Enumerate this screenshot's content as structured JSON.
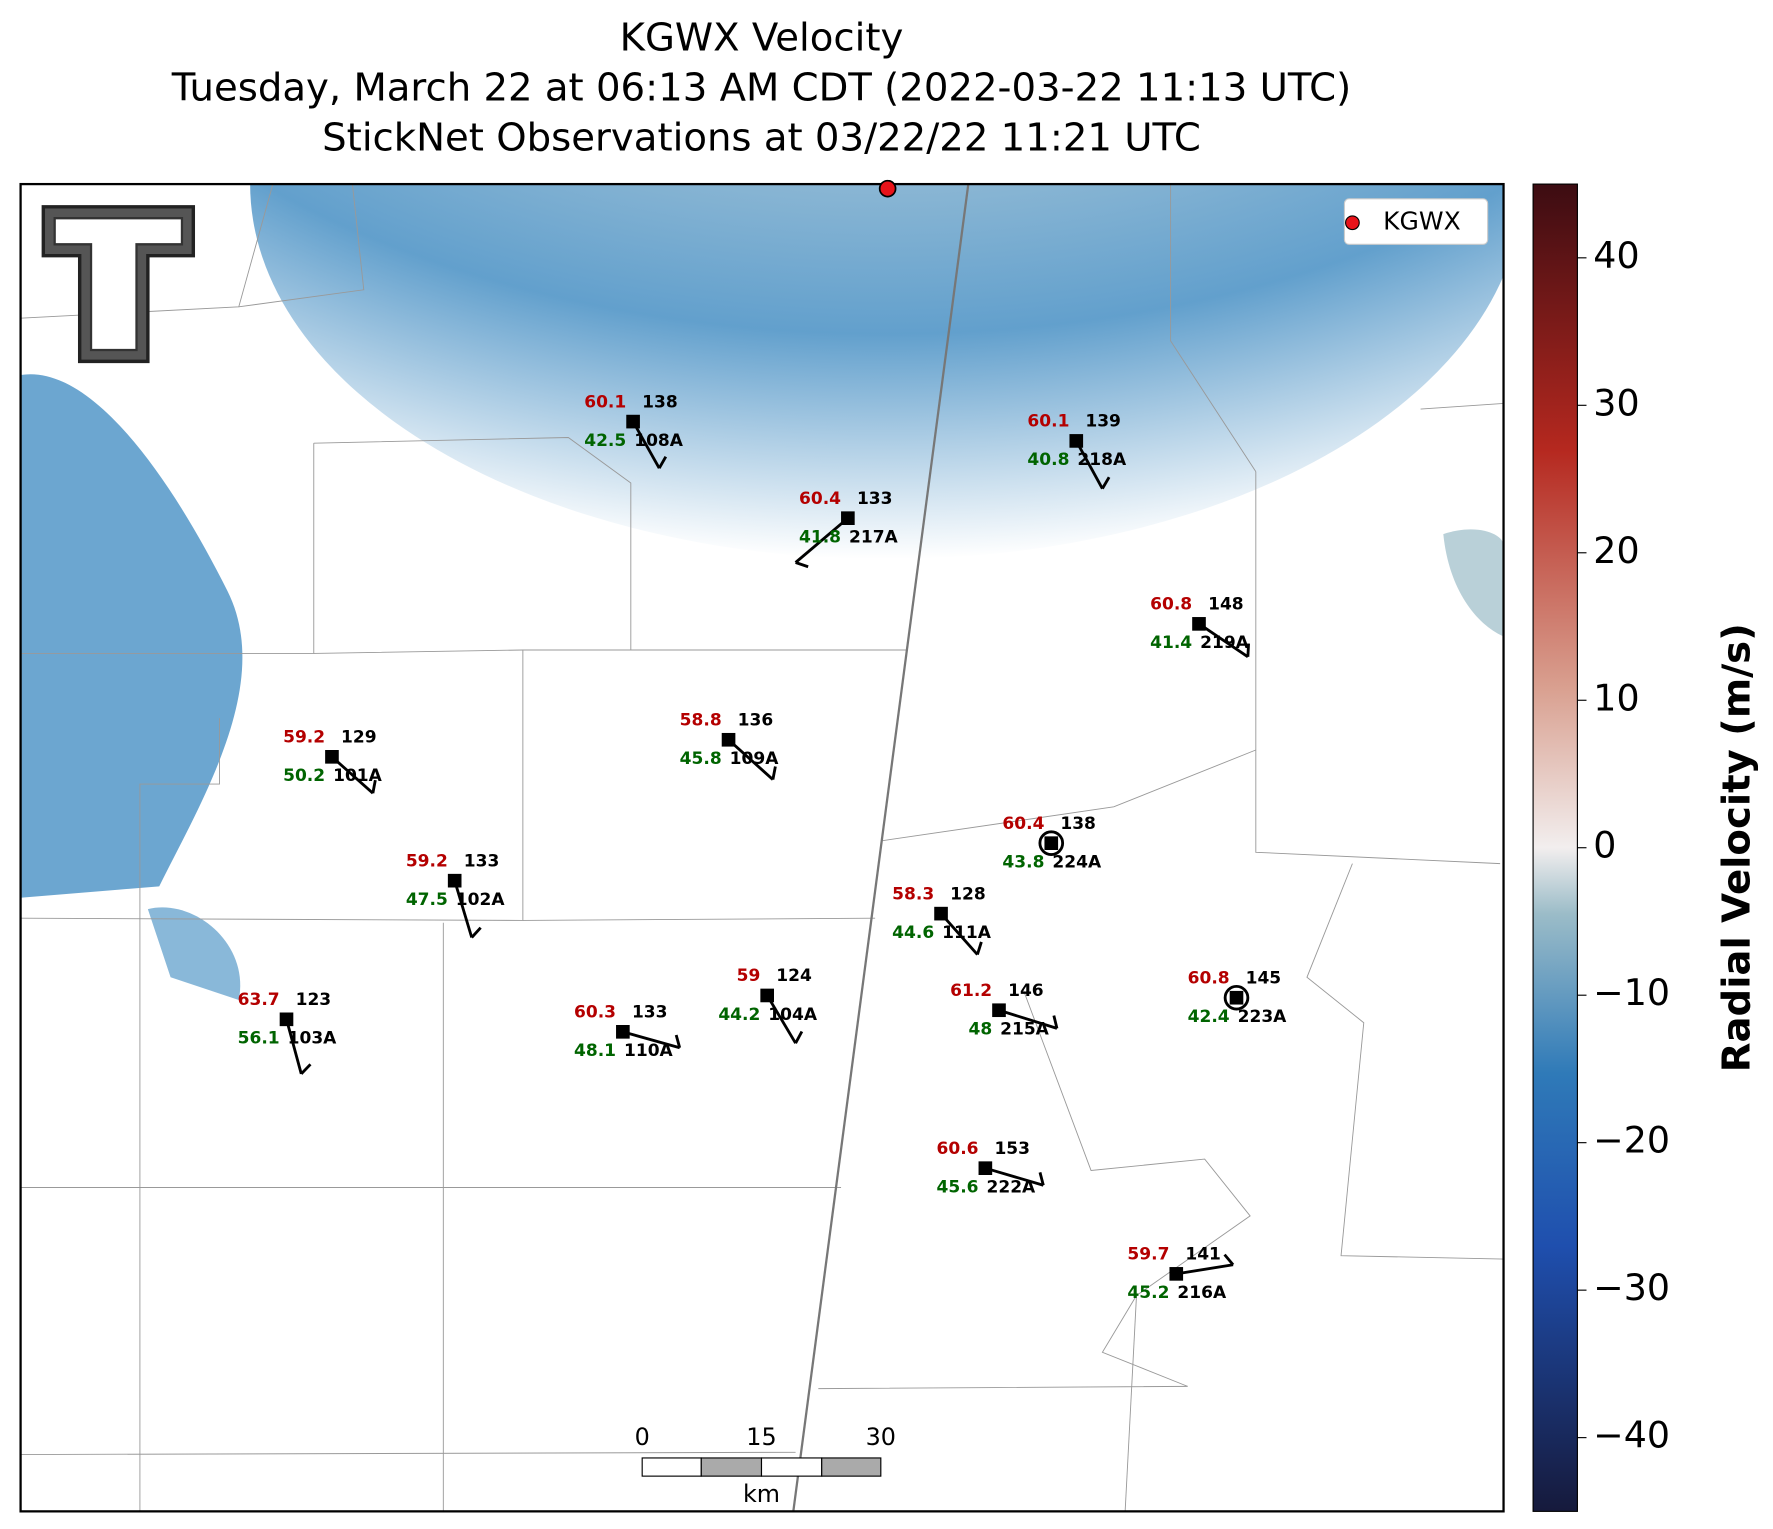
{
  "title": [
    "KGWX Velocity",
    "Tuesday, March 22 at 06:13 AM CDT (2022-03-22 11:13 UTC)",
    "StickNet Observations at 03/22/22 11:21 UTC"
  ],
  "legend": "KGWX",
  "colorbar": {
    "label": "Radial Velocity (m/s)",
    "lim": [
      -45,
      45
    ],
    "ticks": [
      {
        "value": -40,
        "label": "−40"
      },
      {
        "value": -30,
        "label": "−30"
      },
      {
        "value": -20,
        "label": "−20"
      },
      {
        "value": -10,
        "label": "−10"
      },
      0,
      10,
      20,
      30,
      40
    ]
  },
  "scalebar": {
    "ticks": [
      0,
      15,
      30
    ],
    "unit": "km"
  },
  "stations": [
    {
      "id": "108A",
      "temp": 60.1,
      "dewpoint": 42.5,
      "value": 138
    },
    {
      "id": "218A",
      "temp": 60.1,
      "dewpoint": 40.8,
      "value": 139
    },
    {
      "id": "217A",
      "temp": 60.4,
      "dewpoint": 41.8,
      "value": 133
    },
    {
      "id": "219A",
      "temp": 60.8,
      "dewpoint": 41.4,
      "value": 148
    },
    {
      "id": "101A",
      "temp": 59.2,
      "dewpoint": 50.2,
      "value": 129
    },
    {
      "id": "109A",
      "temp": 58.8,
      "dewpoint": 45.8,
      "value": 136
    },
    {
      "id": "224A",
      "temp": 60.4,
      "dewpoint": 43.8,
      "value": 138
    },
    {
      "id": "102A",
      "temp": 59.2,
      "dewpoint": 47.5,
      "value": 133
    },
    {
      "id": "111A",
      "temp": 58.3,
      "dewpoint": 44.6,
      "value": 128
    },
    {
      "id": "104A",
      "temp": 59.0,
      "dewpoint": 44.2,
      "value": 124
    },
    {
      "id": "215A",
      "temp": 61.2,
      "dewpoint": 48.0,
      "value": 146
    },
    {
      "id": "223A",
      "temp": 60.8,
      "dewpoint": 42.4,
      "value": 145
    },
    {
      "id": "103A",
      "temp": 63.7,
      "dewpoint": 56.1,
      "value": 123
    },
    {
      "id": "110A",
      "temp": 60.3,
      "dewpoint": 48.1,
      "value": 133
    },
    {
      "id": "222A",
      "temp": 60.6,
      "dewpoint": 45.6,
      "value": 153
    },
    {
      "id": "216A",
      "temp": 59.7,
      "dewpoint": 45.2,
      "value": 141
    }
  ]
}
